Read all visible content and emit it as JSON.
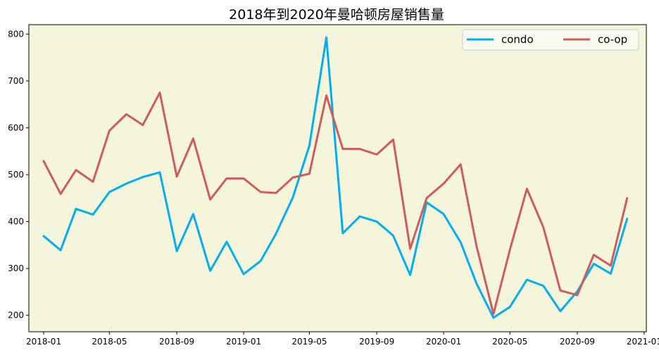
{
  "chart_data": {
    "type": "line",
    "title": "2018年到2020年曼哈顿房屋销售量",
    "xlabel": "",
    "ylabel": "",
    "x": [
      "2018-01",
      "2018-02",
      "2018-03",
      "2018-04",
      "2018-05",
      "2018-06",
      "2018-07",
      "2018-08",
      "2018-09",
      "2018-10",
      "2018-11",
      "2018-12",
      "2019-01",
      "2019-02",
      "2019-03",
      "2019-04",
      "2019-05",
      "2019-06",
      "2019-07",
      "2019-08",
      "2019-09",
      "2019-10",
      "2019-11",
      "2019-12",
      "2020-01",
      "2020-02",
      "2020-03",
      "2020-04",
      "2020-05",
      "2020-06",
      "2020-07",
      "2020-08",
      "2020-09",
      "2020-10",
      "2020-11",
      "2020-12"
    ],
    "x_ticks": [
      "2018-01",
      "2018-05",
      "2018-09",
      "2019-01",
      "2019-05",
      "2019-09",
      "2020-01",
      "2020-05",
      "2020-09",
      "2021-01"
    ],
    "y_ticks": [
      200,
      300,
      400,
      500,
      600,
      700,
      800
    ],
    "xlim": [
      "2017-12-05",
      "2021-01-05"
    ],
    "ylim": [
      165,
      820
    ],
    "grid": false,
    "background": "#f5f5dc",
    "legend_position": "top-right",
    "series": [
      {
        "name": "condo",
        "color": "#00aeef",
        "values": [
          369,
          339,
          427,
          415,
          463,
          481,
          495,
          505,
          337,
          416,
          295,
          357,
          288,
          316,
          374,
          452,
          562,
          793,
          375,
          411,
          400,
          370,
          286,
          441,
          416,
          356,
          268,
          195,
          218,
          276,
          263,
          209,
          251,
          310,
          289,
          406
        ]
      },
      {
        "name": "co-op",
        "color": "#cd5c5c",
        "values": [
          529,
          459,
          510,
          485,
          594,
          629,
          606,
          675,
          496,
          577,
          447,
          492,
          492,
          463,
          461,
          494,
          502,
          669,
          555,
          555,
          543,
          575,
          342,
          450,
          481,
          522,
          348,
          203,
          340,
          470,
          388,
          253,
          243,
          329,
          306,
          450
        ]
      }
    ]
  }
}
